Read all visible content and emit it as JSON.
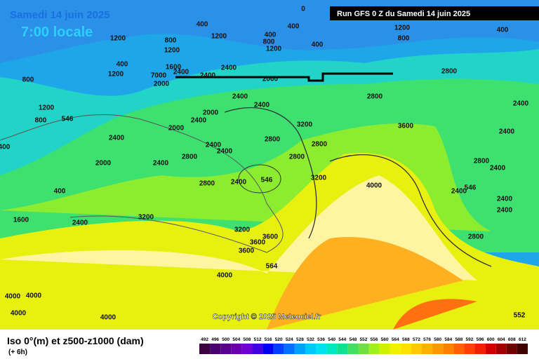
{
  "header": {
    "date": "Samedi 14 juin 2025",
    "time": "7:00 locale",
    "run": "Run GFS 0 Z du Samedi 14 juin 2025"
  },
  "copyright": "Copyright © 2025 Meteociel.fr",
  "legend": {
    "title": "Iso 0°(m) et z500-z1000 (dam)",
    "subtitle": "(+ 6h)",
    "ticks": [
      492,
      496,
      500,
      504,
      508,
      512,
      516,
      520,
      524,
      528,
      532,
      536,
      540,
      544,
      548,
      552,
      556,
      560,
      564,
      568,
      572,
      576,
      580,
      584,
      588,
      592,
      596,
      600,
      604,
      608,
      612
    ],
    "colors": [
      "#3a0040",
      "#4b0070",
      "#5a0090",
      "#6a00b0",
      "#7000d0",
      "#4000e0",
      "#0000f0",
      "#0040ff",
      "#0070ff",
      "#00a0ff",
      "#00c8ff",
      "#00e0f0",
      "#00e8c0",
      "#10e090",
      "#40e060",
      "#70e040",
      "#a0f020",
      "#d0f000",
      "#f0f000",
      "#ffe000",
      "#ffc800",
      "#ffb000",
      "#ff9800",
      "#ff8000",
      "#ff6000",
      "#ff4000",
      "#f02000",
      "#d00000",
      "#a00000",
      "#700000",
      "#400000"
    ]
  },
  "contour_labels": [
    "1200",
    "400",
    "1200",
    "800",
    "1200",
    "800",
    "800",
    "1200",
    "1600",
    "2400",
    "2000",
    "7000",
    "2400",
    "2400",
    "1200",
    "400",
    "0",
    "400",
    "400",
    "800",
    "1200",
    "400",
    "2000",
    "1200",
    "800",
    "400",
    "2800",
    "2800",
    "3600",
    "2400",
    "2400",
    "3200",
    "2400",
    "2400",
    "2000",
    "2400",
    "2000",
    "2400",
    "2000",
    "2400",
    "2800",
    "2400",
    "2400",
    "2800",
    "2800",
    "2800",
    "3200",
    "2800",
    "2400",
    "4000",
    "2800",
    "2400",
    "2400",
    "2400",
    "2400",
    "2800",
    "400",
    "2400",
    "1600",
    "3200",
    "3200",
    "3600",
    "3600",
    "3600",
    "4000",
    "4000",
    "4000",
    "4000",
    "4000",
    "400",
    "546",
    "564",
    "552",
    "546",
    "546"
  ]
}
